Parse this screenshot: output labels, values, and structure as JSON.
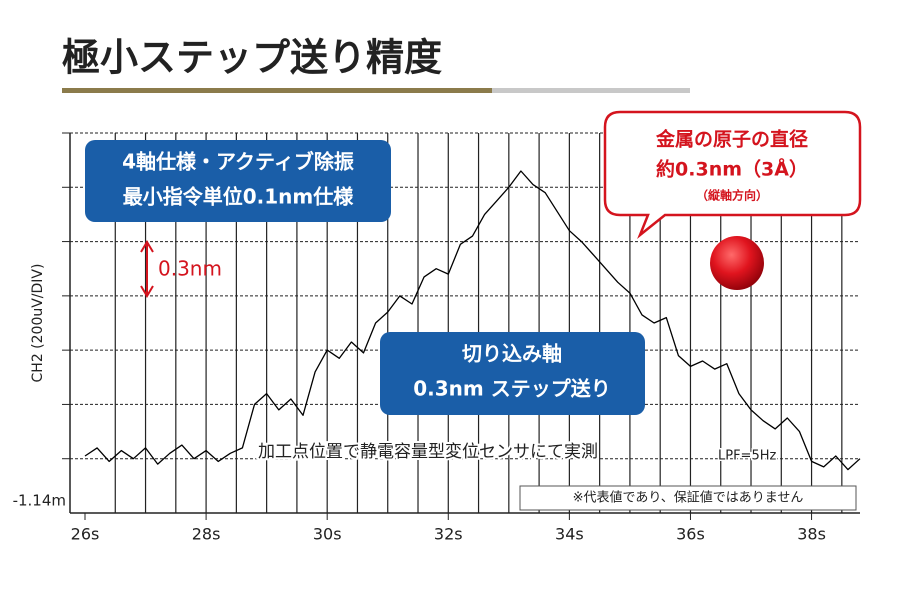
{
  "chart_data": {
    "type": "line",
    "title": "極小ステップ送り精度",
    "y_label": "CH2 (200uV/DIV)",
    "box1": [
      "4軸仕様・アクティブ除振",
      "最小指令単位0.1nm仕様"
    ],
    "step_label": "0.3nm",
    "bubble": [
      "金属の原子の直径",
      "約0.3nm（3Å）",
      "（縦軸方向）"
    ],
    "box2": [
      "切り込み軸",
      "0.3nm ステップ送り"
    ],
    "measure_note": "加工点位置で静電容量型変位センサにて実測",
    "filter_note": "LPF=5Hz",
    "footnote": "※代表値であり、保証値ではありません",
    "color": "#000000",
    "xlim": [
      26,
      38.8
    ],
    "ylim": [
      -1.14,
      0.26
    ],
    "xticks": [
      {
        "value": 26,
        "label": "26s"
      },
      {
        "value": 28,
        "label": "28s"
      },
      {
        "value": 30,
        "label": "30s"
      },
      {
        "value": 32,
        "label": "32s"
      },
      {
        "value": 34,
        "label": "34s"
      },
      {
        "value": 36,
        "label": "36s"
      },
      {
        "value": 38,
        "label": "38s"
      }
    ],
    "yticks": [
      {
        "value": -1.14,
        "label": "-1.14m"
      }
    ],
    "xgrid": [
      26.5,
      27,
      27.5,
      28,
      28.5,
      29,
      29.5,
      30,
      30.5,
      31,
      31.5,
      32,
      32.5,
      33,
      33.5,
      34,
      34.5,
      35,
      35.5,
      36,
      36.5,
      37,
      37.5,
      38,
      38.5
    ],
    "ygrid": [
      -0.94,
      -0.74,
      -0.54,
      -0.34,
      -0.14,
      0.06,
      0.26
    ],
    "x": [
      26.0,
      26.2,
      26.4,
      26.6,
      26.8,
      27.0,
      27.2,
      27.4,
      27.6,
      27.8,
      28.0,
      28.2,
      28.4,
      28.6,
      28.8,
      29.0,
      29.2,
      29.4,
      29.6,
      29.8,
      30.0,
      30.2,
      30.4,
      30.6,
      30.8,
      31.0,
      31.2,
      31.4,
      31.6,
      31.8,
      32.0,
      32.2,
      32.4,
      32.6,
      32.8,
      33.0,
      33.2,
      33.4,
      33.6,
      33.8,
      34.0,
      34.2,
      34.4,
      34.6,
      34.8,
      35.0,
      35.2,
      35.4,
      35.6,
      35.8,
      36.0,
      36.2,
      36.4,
      36.6,
      36.8,
      37.0,
      37.2,
      37.4,
      37.6,
      37.8,
      38.0,
      38.2,
      38.4,
      38.6,
      38.8
    ],
    "values": [
      -0.93,
      -0.9,
      -0.95,
      -0.91,
      -0.94,
      -0.9,
      -0.96,
      -0.92,
      -0.89,
      -0.94,
      -0.91,
      -0.95,
      -0.92,
      -0.9,
      -0.74,
      -0.7,
      -0.76,
      -0.72,
      -0.78,
      -0.62,
      -0.54,
      -0.57,
      -0.51,
      -0.55,
      -0.44,
      -0.4,
      -0.34,
      -0.37,
      -0.27,
      -0.24,
      -0.26,
      -0.15,
      -0.12,
      -0.04,
      0.01,
      0.06,
      0.12,
      0.07,
      0.04,
      -0.03,
      -0.1,
      -0.14,
      -0.19,
      -0.24,
      -0.29,
      -0.33,
      -0.41,
      -0.44,
      -0.42,
      -0.56,
      -0.6,
      -0.58,
      -0.61,
      -0.59,
      -0.7,
      -0.76,
      -0.8,
      -0.83,
      -0.79,
      -0.84,
      -0.95,
      -0.97,
      -0.93,
      -0.98,
      -0.94
    ]
  }
}
